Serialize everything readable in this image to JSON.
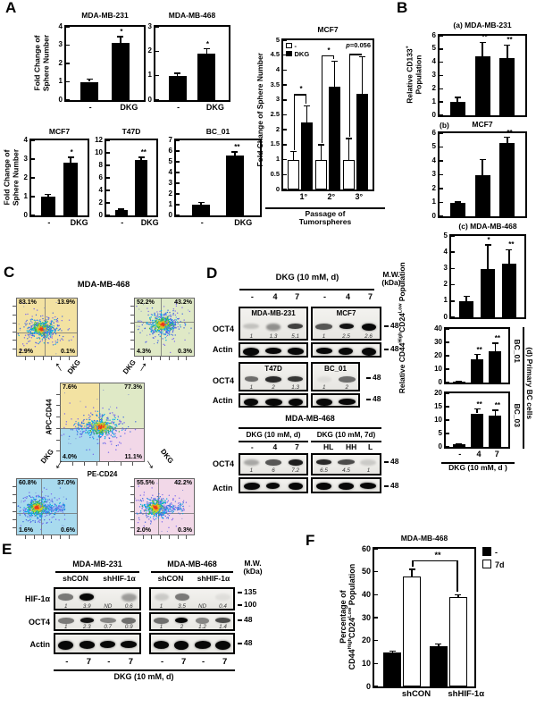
{
  "panels": {
    "A": "A",
    "B": "B",
    "C": "C",
    "D": "D",
    "E": "E",
    "F": "F"
  },
  "axis_labels": {
    "fold_change_2line": "Fold Change of\nSphere Number",
    "fold_change_1line": "Fold Change of Sphere Number",
    "cd133": "Relative CD133^+^\nPopulation",
    "cd44": "Relative CD44^High^CD24^Low^ Population",
    "pct": "Percentage of\nCD44^High^CD24^Low^ Population",
    "primary_bc": "(d) Primary BC cells",
    "bc01": "BC_01",
    "bc03": "BC_03"
  },
  "chart_data": [
    {
      "id": "A-MDA-MB-231",
      "type": "bar",
      "title": "MDA-MB-231",
      "categories": [
        "-",
        "DKG"
      ],
      "values": [
        1.0,
        3.1
      ],
      "errors": [
        0.15,
        0.35
      ],
      "sig": [
        "",
        "*"
      ],
      "ylim": [
        0,
        4
      ],
      "yticks": [
        0,
        1,
        2,
        3,
        4
      ],
      "ylabel": "Fold Change of Sphere Number"
    },
    {
      "id": "A-MDA-MB-468",
      "type": "bar",
      "title": "MDA-MB-468",
      "categories": [
        "-",
        "DKG"
      ],
      "values": [
        1.0,
        1.9
      ],
      "errors": [
        0.1,
        0.2
      ],
      "sig": [
        "",
        "*"
      ],
      "ylim": [
        0,
        3
      ],
      "yticks": [
        0,
        1,
        2,
        3
      ]
    },
    {
      "id": "A-MCF7",
      "type": "bar",
      "title": "MCF7",
      "categories": [
        "-",
        "DKG"
      ],
      "values": [
        1.0,
        2.8
      ],
      "errors": [
        0.12,
        0.3
      ],
      "sig": [
        "",
        "*"
      ],
      "ylim": [
        0,
        4
      ],
      "yticks": [
        0,
        1,
        2,
        3,
        4
      ],
      "ylabel": "Fold Change of Sphere Number"
    },
    {
      "id": "A-T47D",
      "type": "bar",
      "title": "T47D",
      "categories": [
        "-",
        "DKG"
      ],
      "values": [
        0.9,
        8.9
      ],
      "errors": [
        0.12,
        0.4
      ],
      "sig": [
        "",
        "**"
      ],
      "ylim": [
        0,
        12
      ],
      "yticks": [
        0,
        2,
        4,
        6,
        8,
        10,
        12
      ]
    },
    {
      "id": "A-BC01",
      "type": "bar",
      "title": "BC_01",
      "categories": [
        "-",
        "DKG"
      ],
      "values": [
        1.0,
        5.6
      ],
      "errors": [
        0.2,
        0.3
      ],
      "sig": [
        "",
        "**"
      ],
      "ylim": [
        0,
        7
      ],
      "yticks": [
        0,
        1,
        2,
        3,
        4,
        5,
        6,
        7
      ]
    },
    {
      "id": "A-MCF7-passage",
      "type": "grouped-bar",
      "title": "MCF7",
      "xlabel": "Passage of\nTumorspheres",
      "categories": [
        "1°",
        "2°",
        "3°"
      ],
      "series": [
        {
          "name": "-",
          "fill": "white",
          "values": [
            1.0,
            1.0,
            1.0
          ],
          "errors": [
            0.27,
            0.5,
            0.7
          ]
        },
        {
          "name": "DKG",
          "fill": "black",
          "values": [
            2.25,
            3.45,
            3.2
          ],
          "errors": [
            0.55,
            0.85,
            1.25
          ]
        }
      ],
      "annotation": "p=0.056",
      "brackets": [
        {
          "category": 0,
          "label": "*",
          "top": 3.2
        },
        {
          "category": 1,
          "label": "*",
          "top": 4.5
        },
        {
          "category": 2,
          "label": "",
          "top": 4.55
        }
      ],
      "ylim": [
        0,
        5
      ],
      "yticks": [
        0,
        0.5,
        1,
        1.5,
        2,
        2.5,
        3,
        3.5,
        4,
        4.5,
        5
      ],
      "ylabel": "Fold Change of Sphere Number",
      "legend_position": "top-left"
    },
    {
      "id": "B-a",
      "type": "bar",
      "title": "(a) MDA-MB-231",
      "categories": [
        "-",
        "4",
        "7"
      ],
      "values": [
        1.0,
        4.45,
        4.3
      ],
      "errors": [
        0.35,
        1.05,
        1.0
      ],
      "sig": [
        "",
        "**",
        "**"
      ],
      "ylim": [
        0,
        6
      ],
      "yticks": [
        0,
        1,
        2,
        3,
        4,
        5,
        6
      ],
      "ylabel": "Relative CD133+ Population"
    },
    {
      "id": "B-b",
      "type": "bar",
      "title": "MCF7",
      "title_prefix": "(b)",
      "categories": [
        "-",
        "4",
        "7"
      ],
      "values": [
        1.0,
        2.95,
        5.3
      ],
      "errors": [
        0.05,
        1.15,
        0.4
      ],
      "sig": [
        "",
        "",
        "**"
      ],
      "ylim": [
        0,
        6
      ],
      "yticks": [
        0,
        1,
        2,
        3,
        4,
        5,
        6
      ]
    },
    {
      "id": "B-c",
      "type": "bar",
      "title": "(c) MDA-MB-468",
      "categories": [
        "-",
        "4",
        "7"
      ],
      "values": [
        1.0,
        2.95,
        3.3
      ],
      "errors": [
        0.3,
        1.5,
        0.85
      ],
      "sig": [
        "",
        "*",
        "**"
      ],
      "ylim": [
        0,
        5
      ],
      "yticks": [
        0,
        1,
        2,
        3,
        4,
        5
      ]
    },
    {
      "id": "B-d-BC01",
      "type": "bar",
      "right_label": "BC_01",
      "categories": [
        "-",
        "4",
        "7"
      ],
      "values": [
        0.8,
        17.5,
        23.5
      ],
      "errors": [
        0.15,
        3.5,
        6.0
      ],
      "sig": [
        "",
        "**",
        "**"
      ],
      "ylim": [
        0,
        40
      ],
      "yticks": [
        0,
        10,
        20,
        30,
        40
      ]
    },
    {
      "id": "B-d-BC03",
      "type": "bar",
      "right_label": "BC_03",
      "categories": [
        "-",
        "4",
        "7"
      ],
      "values": [
        1.0,
        12.5,
        11.7
      ],
      "errors": [
        0.2,
        1.6,
        1.9
      ],
      "sig": [
        "",
        "**",
        "**"
      ],
      "ylim": [
        0,
        20
      ],
      "yticks": [
        0,
        5,
        10,
        15,
        20
      ],
      "xlabel": "DKG (10 mM, d )"
    },
    {
      "id": "F",
      "type": "grouped-bar",
      "title": "MDA-MB-468",
      "categories": [
        "shCON",
        "shHIF-1α"
      ],
      "series": [
        {
          "name": "-",
          "fill": "black",
          "values": [
            14.8,
            17.5
          ],
          "errors": [
            0.6,
            1.0
          ]
        },
        {
          "name": "7d",
          "fill": "white",
          "values": [
            48,
            39
          ],
          "errors": [
            3,
            1
          ]
        }
      ],
      "bracket": {
        "label": "**",
        "top": 55
      },
      "ylim": [
        0,
        60
      ],
      "yticks": [
        0,
        10,
        20,
        30,
        40,
        50,
        60
      ],
      "ylabel": "Percentage of CD44High CD24Low Population",
      "legend_position": "right"
    }
  ],
  "flow": {
    "title": "MDA-MB-468",
    "xlabel": "PE-CD24",
    "ylabel": "APC-CD44",
    "arrow_label": "DKG",
    "colors": {
      "yellow": "#f3e2a2",
      "green": "#dfe9c6",
      "blue": "#a8daee",
      "pink": "#f2d8e8"
    },
    "center": {
      "tl": "7.6%",
      "tr": "77.3%",
      "bl": "4.0%",
      "br": "11.1%"
    },
    "top_left": {
      "tl": "83.1%",
      "tr": "13.9%",
      "bl": "2.9%",
      "br": "0.1%"
    },
    "top_right": {
      "tl": "52.2%",
      "tr": "43.2%",
      "bl": "4.3%",
      "br": "0.3%"
    },
    "bottom_left": {
      "tl": "60.8%",
      "tr": "37.0%",
      "bl": "1.6%",
      "br": "0.6%"
    },
    "bottom_right": {
      "tl": "55.5%",
      "tr": "42.2%",
      "bl": "2.0%",
      "br": "0.3%"
    }
  },
  "blot_d": {
    "header": "DKG (10 mM, d)",
    "mw_header": "M.W.\n(kDa)",
    "mw": "48",
    "lane_labels": [
      "-",
      "4",
      "7",
      "-",
      "4",
      "7"
    ],
    "oct4_label": "OCT4",
    "actin_label": "Actin",
    "row1": [
      {
        "name": "MDA-MB-231",
        "values": [
          "1",
          "1.3",
          "5.1"
        ],
        "levels": [
          0.18,
          0.4,
          0.75
        ]
      },
      {
        "name": "MCF7",
        "values": [
          "1",
          "2.5",
          "2.6"
        ],
        "levels": [
          0.65,
          0.95,
          1
        ]
      }
    ],
    "row2": [
      {
        "name": "T47D",
        "values": [
          "1",
          "2",
          "1.3"
        ],
        "levels": [
          0.55,
          0.85,
          0.8
        ]
      },
      {
        "name": "BC_01",
        "values": [
          "1",
          "2"
        ],
        "levels": [
          0.06,
          0.55
        ]
      }
    ],
    "row3_title": "MDA-MB-468",
    "row3": [
      {
        "header": "DKG (10 mM, d)",
        "lanes": [
          "-",
          "4",
          "7"
        ],
        "values": [
          "1",
          "6",
          "7.2"
        ],
        "levels": [
          0.3,
          0.65,
          0.9
        ]
      },
      {
        "header": "DKG (10 mM, 7d)",
        "lanes": [
          "HL",
          "HH",
          "L"
        ],
        "values": [
          "6.5",
          "4.5",
          "1"
        ],
        "levels": [
          0.85,
          0.7,
          0.15
        ]
      }
    ]
  },
  "blot_e": {
    "mw_header": "M.W.\n(kDa)",
    "mw_values": [
      "135",
      "100",
      "48",
      "48"
    ],
    "row_labels": [
      "HIF-1α",
      "OCT4",
      "Actin"
    ],
    "lane_labels": [
      "-",
      "7",
      "-",
      "7"
    ],
    "xlabel": "DKG (10 mM, d)",
    "groups": [
      {
        "name": "MDA-MB-231",
        "cols": [
          "shCON",
          "shHIF-1α"
        ],
        "hif_values": [
          "1",
          "3.9",
          "ND",
          "0.6"
        ],
        "hif_levels": [
          0.5,
          1,
          0,
          0.35
        ],
        "oct4_values": [
          "1",
          "2.3",
          "0.7",
          "0.9"
        ],
        "oct4_levels": [
          0.5,
          0.95,
          0.45,
          0.55
        ]
      },
      {
        "name": "MDA-MB-468",
        "cols": [
          "shCON",
          "shHIF-1α"
        ],
        "hif_values": [
          "1",
          "3.5",
          "ND",
          "0.4"
        ],
        "hif_levels": [
          0.15,
          0.5,
          0,
          0.06
        ],
        "oct4_values": [
          "1",
          "2",
          "1.2",
          "1.4"
        ],
        "oct4_levels": [
          0.55,
          1,
          0.45,
          0.7
        ]
      }
    ]
  }
}
